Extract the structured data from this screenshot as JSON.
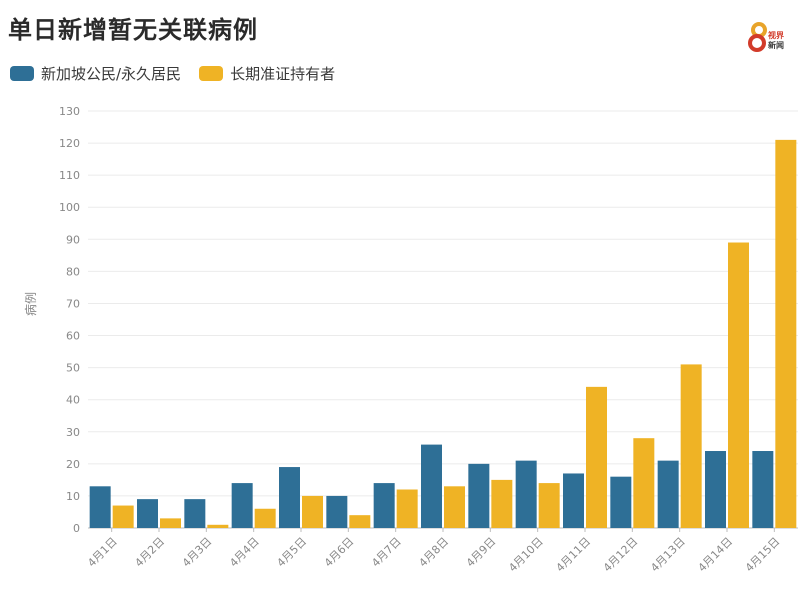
{
  "title": "单日新增暂无关联病例",
  "logo": {
    "line1": "视界",
    "line2": "新闻"
  },
  "colors": {
    "series1": "#2e6f96",
    "series2": "#efb325",
    "grid": "#ebebeb",
    "axis": "#bdbdbd"
  },
  "chart_data": {
    "type": "bar",
    "title": "单日新增暂无关联病例",
    "xlabel": "",
    "ylabel": "病例",
    "ylim": [
      0,
      130
    ],
    "yticks": [
      0,
      10,
      20,
      30,
      40,
      50,
      60,
      70,
      80,
      90,
      100,
      110,
      120,
      130
    ],
    "grid": true,
    "legend": "top-left",
    "categories": [
      "4月1日",
      "4月2日",
      "4月3日",
      "4月4日",
      "4月5日",
      "4月6日",
      "4月7日",
      "4月8日",
      "4月9日",
      "4月10日",
      "4月11日",
      "4月12日",
      "4月13日",
      "4月14日",
      "4月15日"
    ],
    "series": [
      {
        "name": "新加坡公民/永久居民",
        "values": [
          13,
          9,
          9,
          14,
          19,
          10,
          14,
          26,
          20,
          21,
          17,
          16,
          21,
          24,
          24
        ]
      },
      {
        "name": "长期准证持有者",
        "values": [
          7,
          3,
          1,
          6,
          10,
          4,
          12,
          13,
          15,
          14,
          44,
          28,
          51,
          89,
          121
        ]
      }
    ]
  }
}
